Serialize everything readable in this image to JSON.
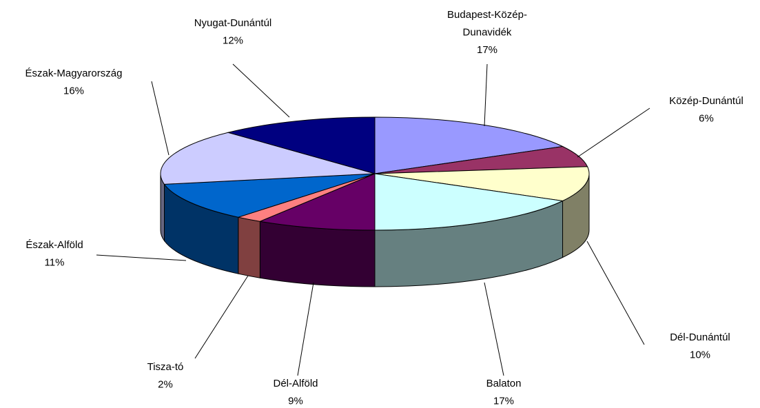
{
  "chart_data": {
    "type": "pie3d",
    "categories": [
      "Budapest-Közép-Dunavidék",
      "Közép-Dunántúl",
      "Dél-Dunántúl",
      "Balaton",
      "Dél-Alföld",
      "Tisza-tó",
      "Észak-Alföld",
      "Észak-Magyarország",
      "Nyugat-Dunántúl"
    ],
    "values": [
      17,
      6,
      10,
      17,
      9,
      2,
      11,
      16,
      12
    ],
    "value_labels": [
      "17%",
      "6%",
      "10%",
      "17%",
      "9%",
      "2%",
      "11%",
      "16%",
      "12%"
    ],
    "colors": [
      "#9999ff",
      "#993366",
      "#ffffcc",
      "#ccffff",
      "#660066",
      "#ff8080",
      "#0066cc",
      "#ccccff",
      "#000080"
    ]
  }
}
